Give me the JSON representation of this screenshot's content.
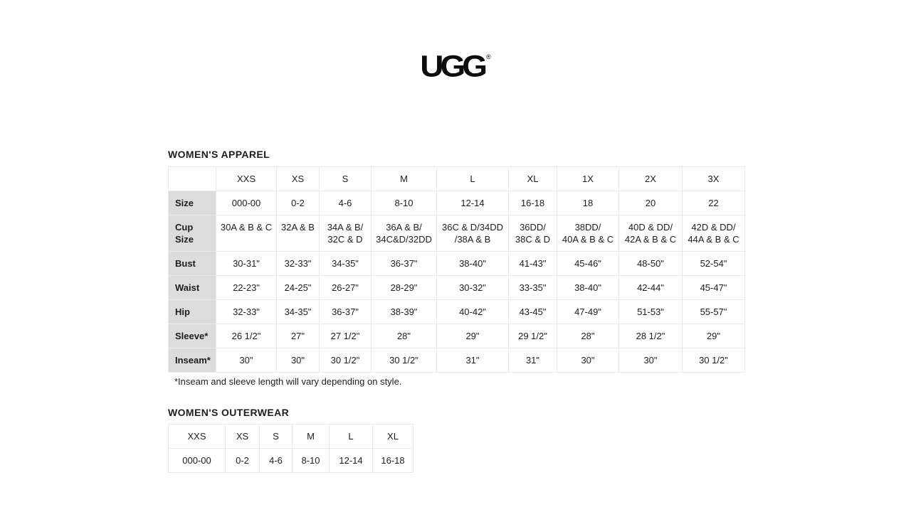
{
  "logo": {
    "text": "UGG",
    "registered": "®"
  },
  "apparel": {
    "title": "WOMEN'S APPAREL",
    "columns": [
      "",
      "XXS",
      "XS",
      "S",
      "M",
      "L",
      "XL",
      "1X",
      "2X",
      "3X"
    ],
    "rows": [
      {
        "label": "Size",
        "values": [
          "000-00",
          "0-2",
          "4-6",
          "8-10",
          "12-14",
          "16-18",
          "18",
          "20",
          "22"
        ]
      },
      {
        "label": "Cup Size",
        "values": [
          "30A & B & C",
          "32A & B",
          "34A & B/\n32C & D",
          "36A & B/\n34C&D/32DD",
          "36C & D/34DD\n/38A & B",
          "36DD/\n38C & D",
          "38DD/\n40A & B & C",
          "40D & DD/\n42A & B & C",
          "42D & DD/\n44A & B & C"
        ]
      },
      {
        "label": "Bust",
        "values": [
          "30-31\"",
          "32-33\"",
          "34-35\"",
          "36-37\"",
          "38-40\"",
          "41-43\"",
          "45-46\"",
          "48-50\"",
          "52-54\""
        ]
      },
      {
        "label": "Waist",
        "values": [
          "22-23\"",
          "24-25\"",
          "26-27\"",
          "28-29\"",
          "30-32\"",
          "33-35\"",
          "38-40\"",
          "42-44\"",
          "45-47\""
        ]
      },
      {
        "label": "Hip",
        "values": [
          "32-33\"",
          "34-35\"",
          "36-37\"",
          "38-39\"",
          "40-42\"",
          "43-45\"",
          "47-49\"",
          "51-53\"",
          "55-57\""
        ]
      },
      {
        "label": "Sleeve*",
        "values": [
          "26 1/2\"",
          "27\"",
          "27 1/2\"",
          "28\"",
          "29\"",
          "29 1/2\"",
          "28\"",
          "28 1/2\"",
          "29\""
        ]
      },
      {
        "label": "Inseam*",
        "values": [
          "30\"",
          "30\"",
          "30 1/2\"",
          "30 1/2\"",
          "31\"",
          "31\"",
          "30\"",
          "30\"",
          "30 1/2\""
        ]
      }
    ],
    "footnote": "*Inseam and sleeve length will vary depending on style."
  },
  "outerwear": {
    "title": "WOMEN'S OUTERWEAR",
    "columns": [
      "XXS",
      "XS",
      "S",
      "M",
      "L",
      "XL"
    ],
    "rows": [
      [
        "000-00",
        "0-2",
        "4-6",
        "8-10",
        "12-14",
        "16-18"
      ]
    ]
  },
  "colors": {
    "label_cell_bg": "#dcdcdc",
    "table_border": "#e9e9e9",
    "text": "#1d1d1f",
    "page_bg": "#ffffff"
  }
}
